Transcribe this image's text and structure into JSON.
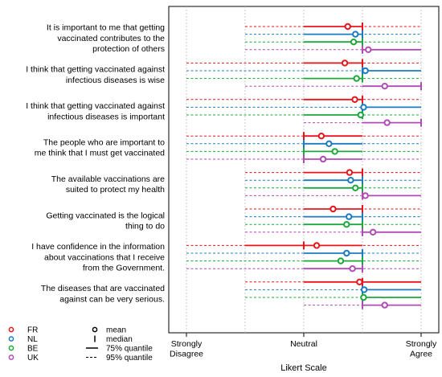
{
  "chart_data": {
    "type": "interval",
    "xlabel": "Likert Scale",
    "xlim": [
      1,
      5
    ],
    "ticks": [
      {
        "value": 1,
        "label": [
          "Strongly",
          "Disagree"
        ]
      },
      {
        "value": 3,
        "label": [
          "Neutral"
        ]
      },
      {
        "value": 5,
        "label": [
          "Strongly",
          "Agree"
        ]
      }
    ],
    "grid_values": [
      1,
      2,
      3,
      4,
      5
    ],
    "series": [
      {
        "name": "FR",
        "color": "#e8141c"
      },
      {
        "name": "NL",
        "color": "#1c7bc0"
      },
      {
        "name": "BE",
        "color": "#1ca83c"
      },
      {
        "name": "UK",
        "color": "#b04bb5"
      }
    ],
    "legend": {
      "placement": "bottom-left",
      "symbols": [
        {
          "mark": "circle",
          "label": "mean"
        },
        {
          "mark": "tick",
          "label": "median"
        },
        {
          "mark": "solid",
          "label": "75% quantile"
        },
        {
          "mark": "dashed",
          "label": "95% quantile"
        }
      ]
    },
    "questions": [
      {
        "label": [
          "It is important to me that getting",
          "vaccinated contributes to the",
          "protection of others"
        ],
        "stats": [
          {
            "mean": 3.75,
            "median": 4,
            "q75": [
              3,
              4
            ],
            "q95": [
              2,
              5
            ]
          },
          {
            "mean": 3.88,
            "median": 4,
            "q75": [
              3,
              4
            ],
            "q95": [
              2,
              5
            ]
          },
          {
            "mean": 3.85,
            "median": 4,
            "q75": [
              3,
              4
            ],
            "q95": [
              2,
              5
            ]
          },
          {
            "mean": 4.1,
            "median": 4,
            "q75": [
              4,
              5
            ],
            "q95": [
              2,
              5
            ]
          }
        ]
      },
      {
        "label": [
          "I think that getting vaccinated against",
          "infectious diseases is wise"
        ],
        "stats": [
          {
            "mean": 3.7,
            "median": 4,
            "q75": [
              3,
              4
            ],
            "q95": [
              1,
              5
            ]
          },
          {
            "mean": 4.05,
            "median": 4,
            "q75": [
              4,
              5
            ],
            "q95": [
              1,
              5
            ]
          },
          {
            "mean": 3.9,
            "median": 4,
            "q75": [
              3,
              4
            ],
            "q95": [
              1,
              5
            ]
          },
          {
            "mean": 4.38,
            "median": 5,
            "q75": [
              4,
              5
            ],
            "q95": [
              2,
              5
            ]
          }
        ]
      },
      {
        "label": [
          "I think that getting vaccinated against",
          "infectious diseases is important"
        ],
        "stats": [
          {
            "mean": 3.87,
            "median": 4,
            "q75": [
              3,
              4
            ],
            "q95": [
              1,
              5
            ]
          },
          {
            "mean": 4.02,
            "median": 4,
            "q75": [
              4,
              5
            ],
            "q95": [
              1,
              5
            ]
          },
          {
            "mean": 3.97,
            "median": 4,
            "q75": [
              3,
              4
            ],
            "q95": [
              1,
              5
            ]
          },
          {
            "mean": 4.42,
            "median": 5,
            "q75": [
              4,
              5
            ],
            "q95": [
              3,
              5
            ]
          }
        ]
      },
      {
        "label": [
          "The people who are important to",
          "me think that I must get vaccinated"
        ],
        "stats": [
          {
            "mean": 3.3,
            "median": 3,
            "q75": [
              3,
              4
            ],
            "q95": [
              1,
              5
            ]
          },
          {
            "mean": 3.43,
            "median": 3,
            "q75": [
              3,
              4
            ],
            "q95": [
              1,
              5
            ]
          },
          {
            "mean": 3.53,
            "median": 3,
            "q75": [
              3,
              4
            ],
            "q95": [
              1,
              5
            ]
          },
          {
            "mean": 3.33,
            "median": 3,
            "q75": [
              3,
              4
            ],
            "q95": [
              1,
              5
            ]
          }
        ]
      },
      {
        "label": [
          "The available vaccinations are",
          "suited to protect my health"
        ],
        "stats": [
          {
            "mean": 3.78,
            "median": 4,
            "q75": [
              3,
              4
            ],
            "q95": [
              2,
              5
            ]
          },
          {
            "mean": 3.8,
            "median": 4,
            "q75": [
              3,
              4
            ],
            "q95": [
              2,
              5
            ]
          },
          {
            "mean": 3.88,
            "median": 4,
            "q75": [
              3,
              4
            ],
            "q95": [
              2,
              5
            ]
          },
          {
            "mean": 4.05,
            "median": 4,
            "q75": [
              4,
              5
            ],
            "q95": [
              2,
              5
            ]
          }
        ]
      },
      {
        "label": [
          "Getting vaccinated is the logical",
          "thing to do"
        ],
        "stats": [
          {
            "mean": 3.5,
            "median": 4,
            "q75": [
              3,
              4
            ],
            "q95": [
              2,
              5
            ]
          },
          {
            "mean": 3.77,
            "median": 4,
            "q75": [
              3,
              4
            ],
            "q95": [
              2,
              5
            ]
          },
          {
            "mean": 3.73,
            "median": 4,
            "q75": [
              3,
              4
            ],
            "q95": [
              2,
              5
            ]
          },
          {
            "mean": 4.18,
            "median": 4,
            "q75": [
              4,
              5
            ],
            "q95": [
              2,
              5
            ]
          }
        ]
      },
      {
        "label": [
          "I have confidence in the information",
          "about vaccinations that I receive",
          "from the Government."
        ],
        "stats": [
          {
            "mean": 3.22,
            "median": 3,
            "q75": [
              2,
              4
            ],
            "q95": [
              1,
              5
            ]
          },
          {
            "mean": 3.73,
            "median": 4,
            "q75": [
              3,
              4
            ],
            "q95": [
              1,
              5
            ]
          },
          {
            "mean": 3.63,
            "median": 4,
            "q75": [
              3,
              4
            ],
            "q95": [
              1,
              5
            ]
          },
          {
            "mean": 3.83,
            "median": 4,
            "q75": [
              3,
              4
            ],
            "q95": [
              1,
              5
            ]
          }
        ]
      },
      {
        "label": [
          "The diseases that are vaccinated",
          "against can be very serious."
        ],
        "stats": [
          {
            "mean": 3.95,
            "median": 4,
            "q75": [
              3,
              5
            ],
            "q95": [
              2,
              5
            ]
          },
          {
            "mean": 4.03,
            "median": 4,
            "q75": [
              4,
              5
            ],
            "q95": [
              2,
              5
            ]
          },
          {
            "mean": 4.02,
            "median": 4,
            "q75": [
              4,
              5
            ],
            "q95": [
              2,
              5
            ]
          },
          {
            "mean": 4.38,
            "median": 4,
            "q75": [
              4,
              5
            ],
            "q95": [
              3,
              5
            ]
          }
        ]
      }
    ]
  }
}
